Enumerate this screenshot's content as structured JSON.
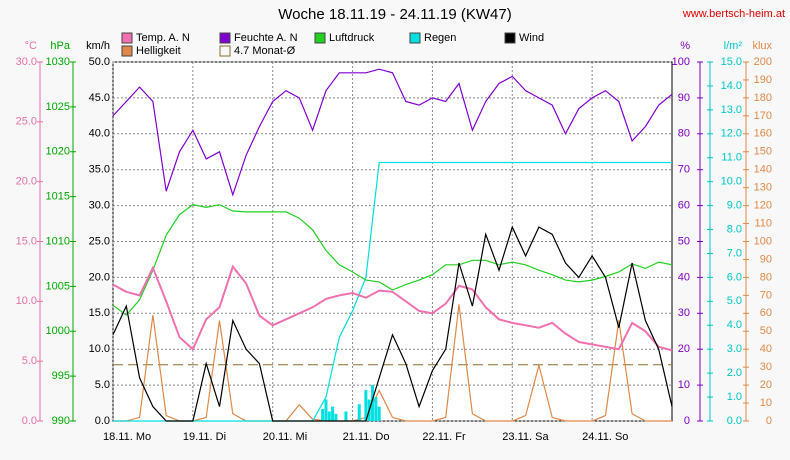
{
  "chart_data": {
    "type": "line",
    "title": "Woche 18.11.19 - 24.11.19 (KW47)",
    "source": "www.bertsch-heim.at",
    "grid": true,
    "x": [
      0,
      4,
      8,
      12,
      16,
      20,
      24,
      28,
      32,
      36,
      40,
      44,
      48,
      52,
      56,
      60,
      64,
      68,
      72,
      76,
      80,
      84,
      88,
      92,
      96,
      100,
      104,
      108,
      112,
      116,
      120,
      124,
      128,
      132,
      136,
      140,
      144,
      148,
      152,
      156,
      160,
      164,
      168
    ],
    "xlim": [
      0,
      168
    ],
    "xticks": [
      {
        "value": 0,
        "label": "18.11. Mo"
      },
      {
        "value": 24,
        "label": "19.11. Di"
      },
      {
        "value": 48,
        "label": "20.11. Mi"
      },
      {
        "value": 72,
        "label": "21.11. Do"
      },
      {
        "value": 96,
        "label": "22.11. Fr"
      },
      {
        "value": 120,
        "label": "23.11. Sa"
      },
      {
        "value": 144,
        "label": "24.11. So"
      }
    ],
    "axes": [
      {
        "id": "temp",
        "unit": "°C",
        "color": "#e870a8",
        "lim": [
          0,
          30
        ],
        "ticks": [
          {
            "value": 0,
            "label": "0.0"
          },
          {
            "value": 5,
            "label": "5.0"
          },
          {
            "value": 10,
            "label": "10.0"
          },
          {
            "value": 15,
            "label": "15.0"
          },
          {
            "value": 20,
            "label": "20.0"
          },
          {
            "value": 25,
            "label": "25.0"
          },
          {
            "value": 30,
            "label": "30.0"
          }
        ]
      },
      {
        "id": "hpa",
        "unit": "hPa",
        "color": "#00a800",
        "lim": [
          990,
          1030
        ],
        "ticks": [
          990,
          995,
          1000,
          1005,
          1010,
          1015,
          1020,
          1025,
          1030
        ]
      },
      {
        "id": "wind",
        "unit": "km/h",
        "color": "#000000",
        "lim": [
          0,
          50
        ],
        "ticks": [
          {
            "value": 0,
            "label": "0.0"
          },
          {
            "value": 5,
            "label": "5.0"
          },
          {
            "value": 10,
            "label": "10.0"
          },
          {
            "value": 15,
            "label": "15.0"
          },
          {
            "value": 20,
            "label": "20.0"
          },
          {
            "value": 25,
            "label": "25.0"
          },
          {
            "value": 30,
            "label": "30.0"
          },
          {
            "value": 35,
            "label": "35.0"
          },
          {
            "value": 40,
            "label": "40.0"
          },
          {
            "value": 45,
            "label": "45.0"
          },
          {
            "value": 50,
            "label": "50.0"
          }
        ]
      },
      {
        "id": "hum",
        "unit": "%",
        "color": "#8000c0",
        "lim": [
          0,
          100
        ],
        "ticks": [
          0,
          10,
          20,
          30,
          40,
          50,
          60,
          70,
          80,
          90,
          100
        ]
      },
      {
        "id": "rain",
        "unit": "l/m²",
        "color": "#00c8c8",
        "lim": [
          0,
          15
        ],
        "ticks": [
          {
            "value": 0,
            "label": "0.0"
          },
          {
            "value": 1,
            "label": "1.0"
          },
          {
            "value": 2,
            "label": "2.0"
          },
          {
            "value": 3,
            "label": "3.0"
          },
          {
            "value": 4,
            "label": "4.0"
          },
          {
            "value": 5,
            "label": "5.0"
          },
          {
            "value": 6,
            "label": "6.0"
          },
          {
            "value": 7,
            "label": "7.0"
          },
          {
            "value": 8,
            "label": "8.0"
          },
          {
            "value": 9,
            "label": "9.0"
          },
          {
            "value": 10,
            "label": "10.0"
          },
          {
            "value": 11,
            "label": "11.0"
          },
          {
            "value": 12,
            "label": "12.0"
          },
          {
            "value": 13,
            "label": "13.0"
          },
          {
            "value": 14,
            "label": "14.0"
          },
          {
            "value": 15,
            "label": "15.0"
          }
        ]
      },
      {
        "id": "lux",
        "unit": "klux",
        "color": "#e08848",
        "lim": [
          0,
          200
        ],
        "ticks": [
          0,
          10,
          20,
          30,
          40,
          50,
          60,
          70,
          80,
          90,
          100,
          110,
          120,
          130,
          140,
          150,
          160,
          170,
          180,
          190,
          200
        ]
      }
    ],
    "series": [
      {
        "name": "Temp. A. N",
        "color": "#f070b0",
        "axis": "temp",
        "values": [
          11.4,
          10.8,
          10.5,
          12.8,
          10.0,
          7.0,
          6.0,
          8.5,
          9.5,
          12.9,
          11.5,
          8.8,
          8.0,
          8.5,
          9.0,
          9.5,
          10.2,
          10.5,
          10.7,
          10.3,
          10.9,
          10.8,
          10.0,
          9.2,
          9.0,
          9.8,
          11.3,
          11.0,
          9.5,
          8.5,
          8.2,
          8.0,
          7.8,
          8.2,
          7.3,
          6.6,
          6.4,
          6.2,
          6.0,
          8.2,
          7.5,
          6.2,
          5.9
        ]
      },
      {
        "name": "Feuchte A. N",
        "color": "#8000d0",
        "axis": "hum",
        "values": [
          85,
          89,
          93,
          89,
          64,
          75,
          81,
          73,
          75,
          63,
          74,
          82,
          89,
          92,
          90,
          81,
          92,
          97,
          97,
          97,
          98,
          97,
          89,
          88,
          90,
          89,
          94,
          81,
          89,
          94,
          96,
          92,
          90,
          88,
          80,
          87,
          90,
          92,
          89,
          78,
          82,
          88,
          91
        ]
      },
      {
        "name": "Luftdruck",
        "color": "#20d020",
        "axis": "hpa",
        "values": [
          1002.9,
          1001.8,
          1003.5,
          1006.8,
          1010.7,
          1013.0,
          1014.1,
          1013.8,
          1014.1,
          1013.4,
          1013.3,
          1013.3,
          1013.3,
          1013.3,
          1012.6,
          1011.3,
          1009.0,
          1007.4,
          1006.6,
          1005.7,
          1005.5,
          1004.6,
          1005.2,
          1005.7,
          1006.3,
          1007.4,
          1007.4,
          1007.9,
          1007.9,
          1007.4,
          1007.7,
          1007.4,
          1006.8,
          1006.3,
          1005.7,
          1005.5,
          1005.7,
          1006.1,
          1006.6,
          1007.5,
          1007.0,
          1007.7,
          1007.4
        ]
      },
      {
        "name": "Regen",
        "color": "#00e0e0",
        "axis": "rain",
        "values": [
          0,
          0,
          0,
          0,
          0,
          0,
          0,
          0,
          0,
          0,
          0,
          0,
          0,
          0,
          0,
          0,
          1.0,
          3.5,
          4.6,
          6.0,
          10.8,
          10.8,
          10.8,
          10.8,
          10.8,
          10.8,
          10.8,
          10.8,
          10.8,
          10.8,
          10.8,
          10.8,
          10.8,
          10.8,
          10.8,
          10.8,
          10.8,
          10.8,
          10.8,
          10.8,
          10.8,
          10.8,
          10.8
        ],
        "bar_x": [
          63,
          64,
          65,
          66,
          67,
          70,
          74,
          76,
          77,
          78,
          79,
          80
        ],
        "bar_values": [
          0.5,
          0.9,
          0.4,
          0.6,
          0.3,
          0.4,
          0.7,
          1.3,
          0.9,
          1.5,
          1.0,
          0.6
        ]
      },
      {
        "name": "Wind",
        "color": "#000000",
        "axis": "wind",
        "values": [
          12,
          16,
          6,
          2,
          0,
          0,
          0,
          8,
          2,
          14,
          10,
          8,
          0,
          0,
          0,
          0,
          0,
          0,
          0,
          0,
          6,
          12,
          8,
          2,
          7,
          10,
          22,
          16,
          26,
          21,
          27,
          23,
          27,
          26,
          22,
          20,
          23,
          20,
          13,
          22,
          14,
          10,
          2
        ]
      },
      {
        "name": "Helligkeit",
        "color": "#e08848",
        "axis": "lux",
        "values": [
          0,
          0,
          2,
          59,
          3,
          0,
          0,
          2,
          56,
          4,
          0,
          0,
          0,
          0,
          9,
          1,
          0,
          0,
          0,
          2,
          17,
          2,
          0,
          0,
          0,
          2,
          65,
          4,
          0,
          0,
          0,
          3,
          31,
          2,
          0,
          0,
          0,
          3,
          56,
          4,
          0,
          0,
          0
        ]
      }
    ],
    "reference": {
      "name": "4.7 Monat-Ø",
      "value": 4.7,
      "axis": "temp",
      "color": "#887030"
    }
  }
}
